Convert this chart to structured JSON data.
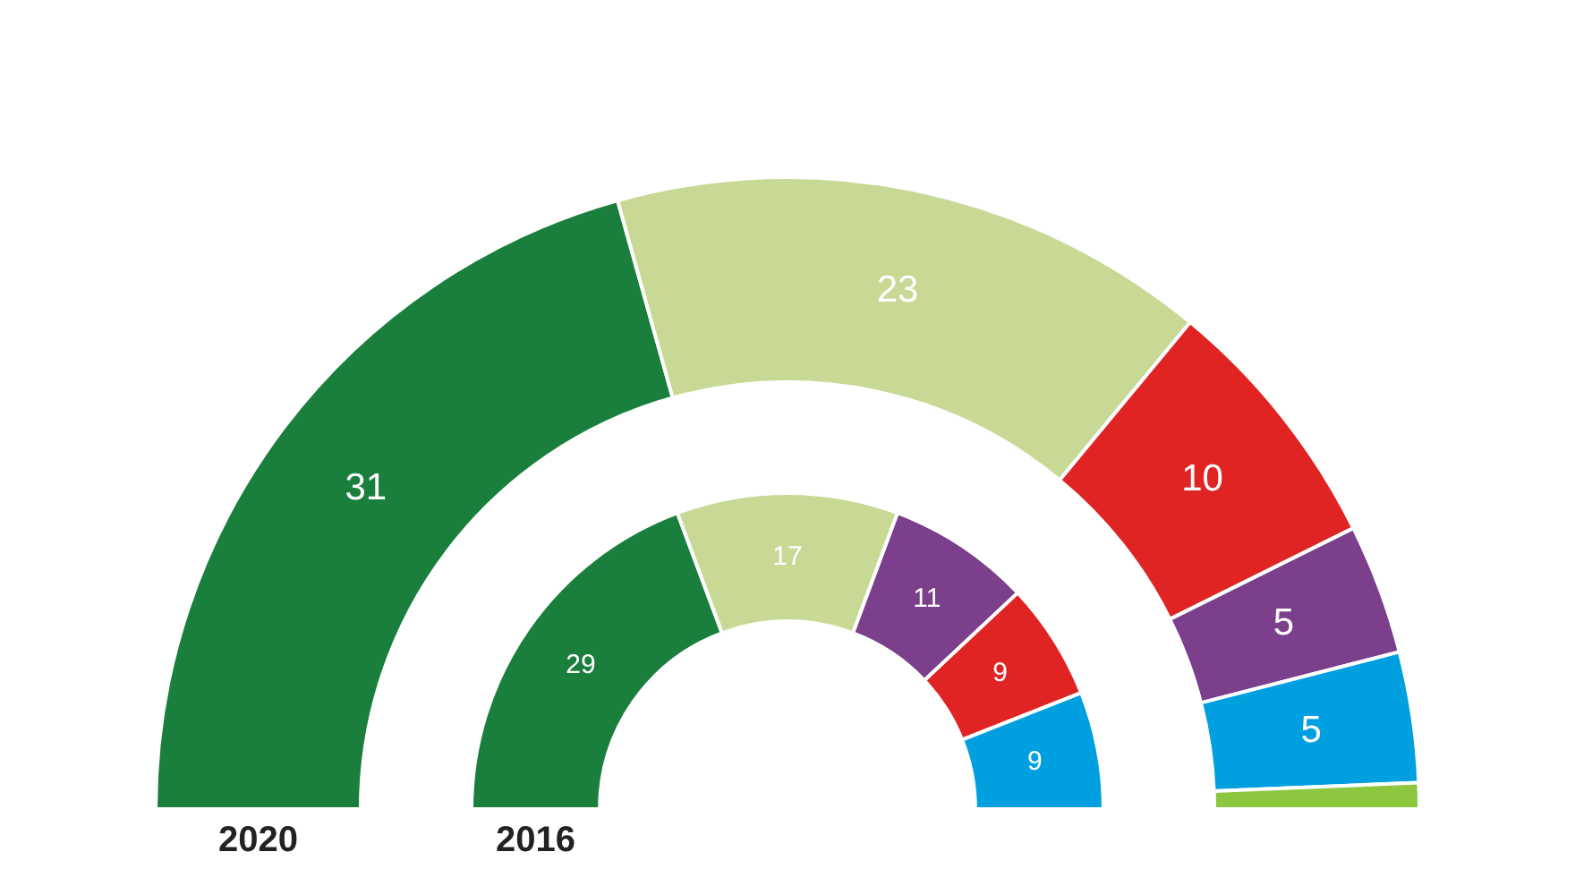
{
  "chart_data": {
    "type": "donut",
    "series": [
      {
        "name": "2020",
        "values": [
          31,
          23,
          10,
          5,
          5,
          1
        ],
        "colors": [
          "#1a7f3c",
          "#c8d996",
          "#e02424",
          "#7b3f8c",
          "#00a0e0",
          "#8dc63f"
        ],
        "value_labels": [
          "31",
          "23",
          "10",
          "5",
          "5",
          null
        ]
      },
      {
        "name": "2016",
        "values": [
          29,
          17,
          11,
          9,
          9
        ],
        "colors": [
          "#1a7f3c",
          "#c8d996",
          "#7b3f8c",
          "#e02424",
          "#00a0e0"
        ],
        "value_labels": [
          "29",
          "17",
          "11",
          "9",
          "9"
        ]
      }
    ]
  }
}
